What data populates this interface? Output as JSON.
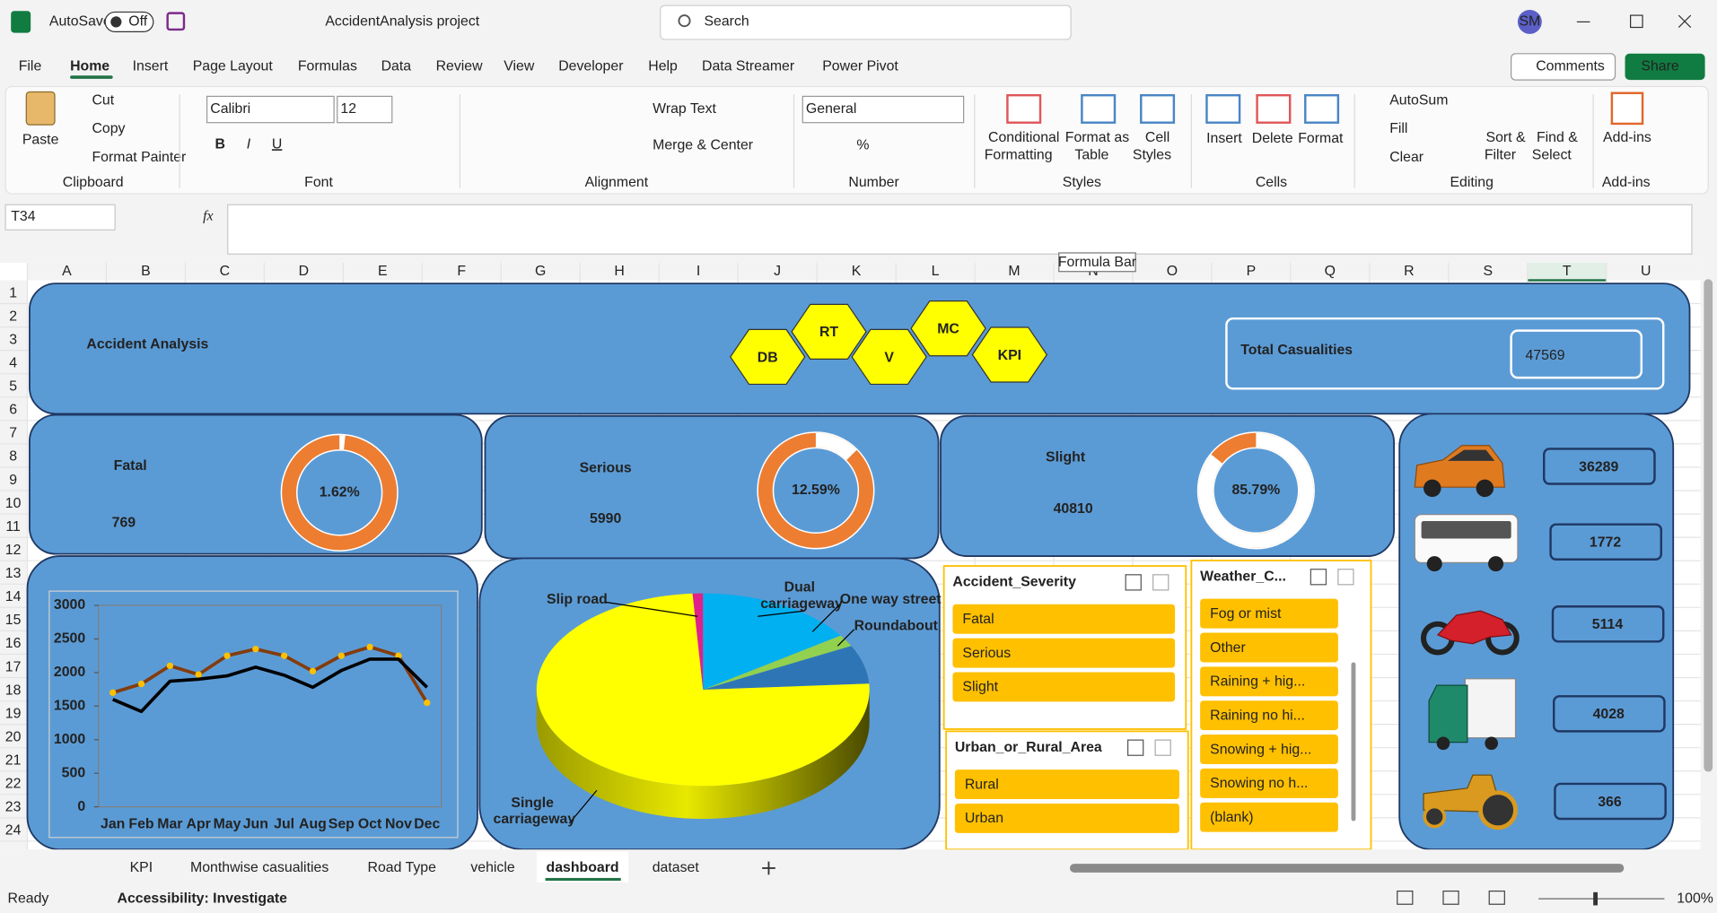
{
  "title_bar": {
    "app": "AutoSave",
    "toggle": "Off",
    "file_name": "AccidentAnalysis project",
    "search": "Search",
    "user": "SM"
  },
  "menu_tabs": [
    "File",
    "Home",
    "Insert",
    "Page Layout",
    "Formulas",
    "Data",
    "Review",
    "View",
    "Developer",
    "Help",
    "Data Streamer",
    "Power Pivot"
  ],
  "buttons": {
    "comments": "Comments",
    "share": "Share"
  },
  "ribbon": {
    "items": [
      "Paste",
      "Cut",
      "Copy",
      "Format Painter",
      "Calibri",
      "12",
      "B",
      "I",
      "U",
      "Wrap Text",
      "Merge & Center",
      "General",
      "%",
      "Conditional",
      "Formatting",
      "Format as",
      "Table",
      "Cell",
      "Styles",
      "Insert",
      "Delete",
      "Format",
      "AutoSum",
      "Fill",
      "Clear",
      "Sort &",
      "Filter",
      "Find &",
      "Select",
      "Add-ins"
    ],
    "groups": [
      "Clipboard",
      "Font",
      "Alignment",
      "Number",
      "Styles",
      "Cells",
      "Editing",
      "Add-ins"
    ]
  },
  "formula_bar": {
    "name_box": "T34",
    "fx": "fx",
    "tooltip": "Formula Bar"
  },
  "columns": [
    "A",
    "B",
    "C",
    "D",
    "E",
    "F",
    "G",
    "H",
    "I",
    "J",
    "K",
    "L",
    "M",
    "N",
    "O",
    "P",
    "Q",
    "R",
    "S",
    "T",
    "U"
  ],
  "rows": [
    1,
    2,
    3,
    4,
    5,
    6,
    7,
    8,
    9,
    10,
    11,
    12,
    13,
    14,
    15,
    16,
    17,
    18,
    19,
    20,
    21,
    22,
    23,
    24
  ],
  "dashboard": {
    "title": "Accident Analysis",
    "nav": [
      "DB",
      "RT",
      "V",
      "MC",
      "KPI"
    ],
    "total": {
      "label": "Total Casualities",
      "value": 47569
    },
    "kpis": [
      {
        "label": "Fatal",
        "value": 769,
        "percent": 1.62,
        "percent_label": "1.62%"
      },
      {
        "label": "Serious",
        "value": 5990,
        "percent": 12.59,
        "percent_label": "12.59%"
      },
      {
        "label": "Slight",
        "value": 40810,
        "percent": 85.79,
        "percent_label": "85.79%"
      }
    ],
    "vehicles": [
      36289,
      1772,
      5114,
      4028,
      366
    ],
    "slicers": [
      {
        "title": "Accident_Severity",
        "items": [
          "Fatal",
          "Serious",
          "Slight"
        ]
      },
      {
        "title": "Urban_or_Rural_Area",
        "items": [
          "Rural",
          "Urban"
        ]
      },
      {
        "title": "Weather_C...",
        "items": [
          "Fog or mist",
          "Other",
          "Raining + hig...",
          "Raining no hi...",
          "Snowing + hig...",
          "Snowing no h...",
          "(blank)"
        ]
      }
    ]
  },
  "chart_data": [
    {
      "type": "line",
      "categories": [
        "Jan",
        "Feb",
        "Mar",
        "Apr",
        "May",
        "Jun",
        "Jul",
        "Aug",
        "Sep",
        "Oct",
        "Nov",
        "Dec"
      ],
      "series": [
        {
          "color": "#843C0C",
          "marker_color": "#FFC000",
          "values": [
            1700,
            1830,
            2100,
            1970,
            2250,
            2350,
            2250,
            2020,
            2250,
            2380,
            2250,
            1550
          ]
        },
        {
          "color": "#000000",
          "values": [
            1600,
            1420,
            1870,
            1900,
            1950,
            2080,
            1960,
            1780,
            2030,
            2200,
            2200,
            1780
          ]
        }
      ],
      "ylim": [
        0,
        3000
      ],
      "yticks": [
        0,
        500,
        1000,
        1500,
        2000,
        2500,
        3000
      ],
      "grid": false
    },
    {
      "type": "pie",
      "three_d": true,
      "categories": [
        "Dual carriageway",
        "One way street",
        "Roundabout",
        "Single carriageway",
        "Slip road"
      ],
      "values": [
        15.5,
        2,
        6.5,
        75,
        1
      ],
      "colors": [
        "#00B0F0",
        "#92D050",
        "#2E75B6",
        "#FFFF00",
        "#E0218A"
      ]
    }
  ],
  "sheet_tabs": [
    "KPI",
    "Monthwise casualities",
    "Road Type",
    "vehicle",
    "dashboard",
    "dataset"
  ],
  "status": {
    "ready": "Ready",
    "accessibility": "Accessibility: Investigate",
    "zoom": "100%"
  }
}
